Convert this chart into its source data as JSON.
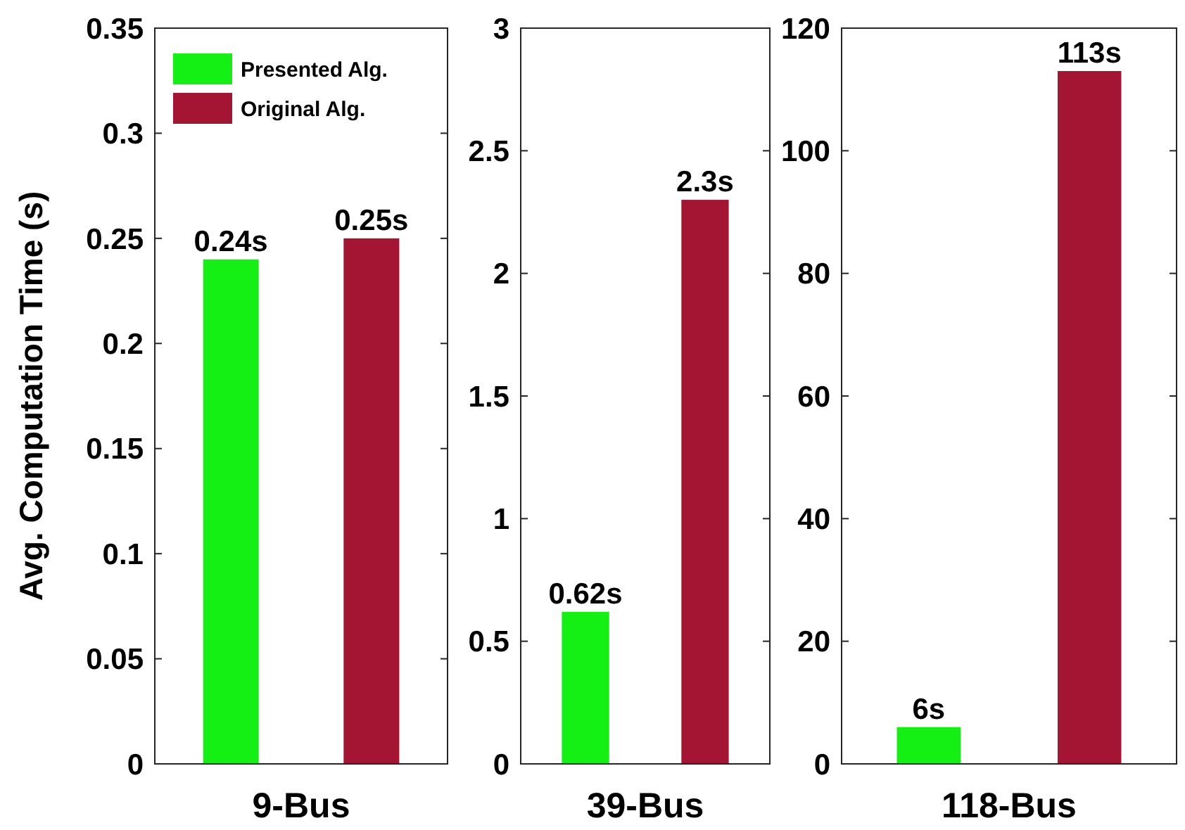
{
  "chart_data": [
    {
      "type": "bar",
      "ylabel": "Avg. Computation Time (s)",
      "categories": [
        "9-Bus"
      ],
      "ylim": [
        0,
        0.35
      ],
      "yticks": [
        0,
        0.05,
        0.1,
        0.15,
        0.2,
        0.25,
        0.3,
        0.35
      ],
      "legend": "top left",
      "series": [
        {
          "name": "Presented Alg.",
          "color": "#14f014",
          "values": [
            0.24
          ],
          "value_labels": [
            "0.24s"
          ]
        },
        {
          "name": "Original Alg.",
          "color": "#a31532",
          "values": [
            0.25
          ],
          "value_labels": [
            "0.25s"
          ]
        }
      ]
    },
    {
      "type": "bar",
      "categories": [
        "39-Bus"
      ],
      "ylim": [
        0,
        3
      ],
      "yticks": [
        0,
        0.5,
        1,
        1.5,
        2,
        2.5,
        3
      ],
      "series": [
        {
          "color": "#14f014",
          "values": [
            0.62
          ],
          "value_labels": [
            "0.62s"
          ]
        },
        {
          "color": "#a31532",
          "values": [
            2.3
          ],
          "value_labels": [
            "2.3s"
          ]
        }
      ]
    },
    {
      "type": "bar",
      "categories": [
        "118-Bus"
      ],
      "ylim": [
        0,
        120
      ],
      "yticks": [
        0,
        20,
        40,
        60,
        80,
        100,
        120
      ],
      "series": [
        {
          "color": "#14f014",
          "values": [
            6
          ],
          "value_labels": [
            "6s"
          ]
        },
        {
          "color": "#a31532",
          "values": [
            113
          ],
          "value_labels": [
            "113s"
          ]
        }
      ]
    }
  ]
}
